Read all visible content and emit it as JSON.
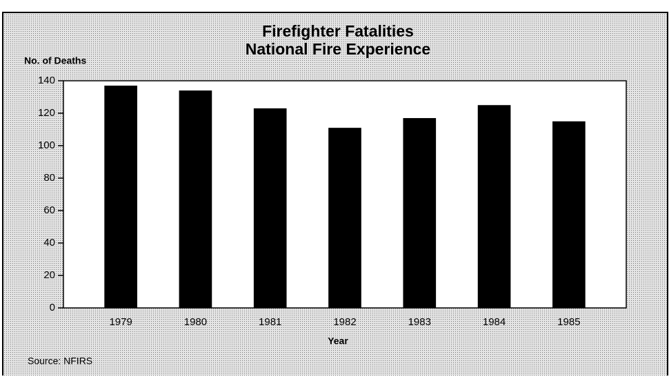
{
  "chart_data": {
    "type": "bar",
    "title": "Firefighter Fatalities",
    "subtitle": "National Fire Experience",
    "y_axis_label": "No. of Deaths",
    "x_axis_label": "Year",
    "source": "Source: NFIRS",
    "categories": [
      "1979",
      "1980",
      "1981",
      "1982",
      "1983",
      "1984",
      "1985"
    ],
    "values": [
      137,
      134,
      123,
      111,
      117,
      125,
      115
    ],
    "color": "#000000",
    "ylim": [
      0,
      140
    ],
    "yticks": [
      0,
      20,
      40,
      60,
      80,
      100,
      120,
      140
    ],
    "grid": false
  }
}
